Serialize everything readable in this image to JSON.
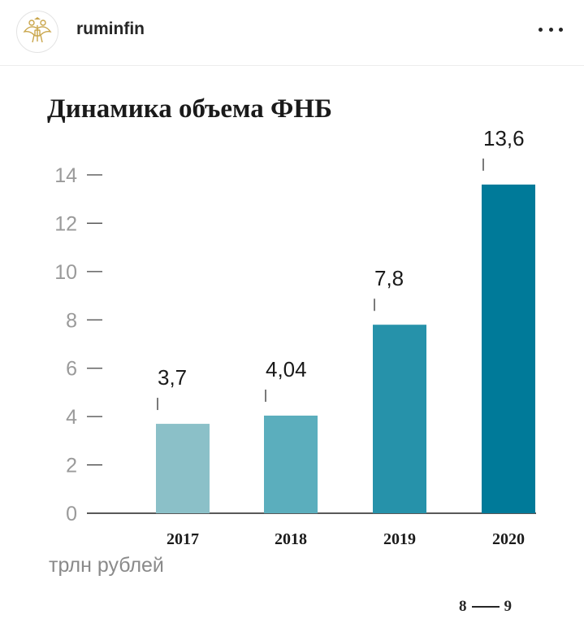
{
  "header": {
    "username": "ruminfin",
    "avatar_icon": "double-headed-eagle-emblem-icon",
    "more_icon": "more-options-icon"
  },
  "unit_label": "трлн рублей",
  "pager": {
    "current": "8",
    "total": "9"
  },
  "colors": {
    "bars": [
      "#8bc0c8",
      "#5baebd",
      "#2692aa",
      "#007a99"
    ],
    "axis": "#222222",
    "tick_label": "#9a9a9a",
    "value_label": "#1a1a1a"
  },
  "chart_data": {
    "type": "bar",
    "title": "Динамика объема ФНБ",
    "categories": [
      "2017",
      "2018",
      "2019",
      "2020"
    ],
    "values": [
      3.7,
      4.04,
      7.8,
      13.6
    ],
    "value_labels": [
      "3,7",
      "4,04",
      "7,8",
      "13,6"
    ],
    "yticks": [
      0,
      2,
      4,
      6,
      8,
      10,
      12,
      14
    ],
    "ylim": [
      0,
      14
    ],
    "ylabel": "трлн рублей",
    "xlabel": "",
    "grid": false,
    "legend": "none"
  }
}
